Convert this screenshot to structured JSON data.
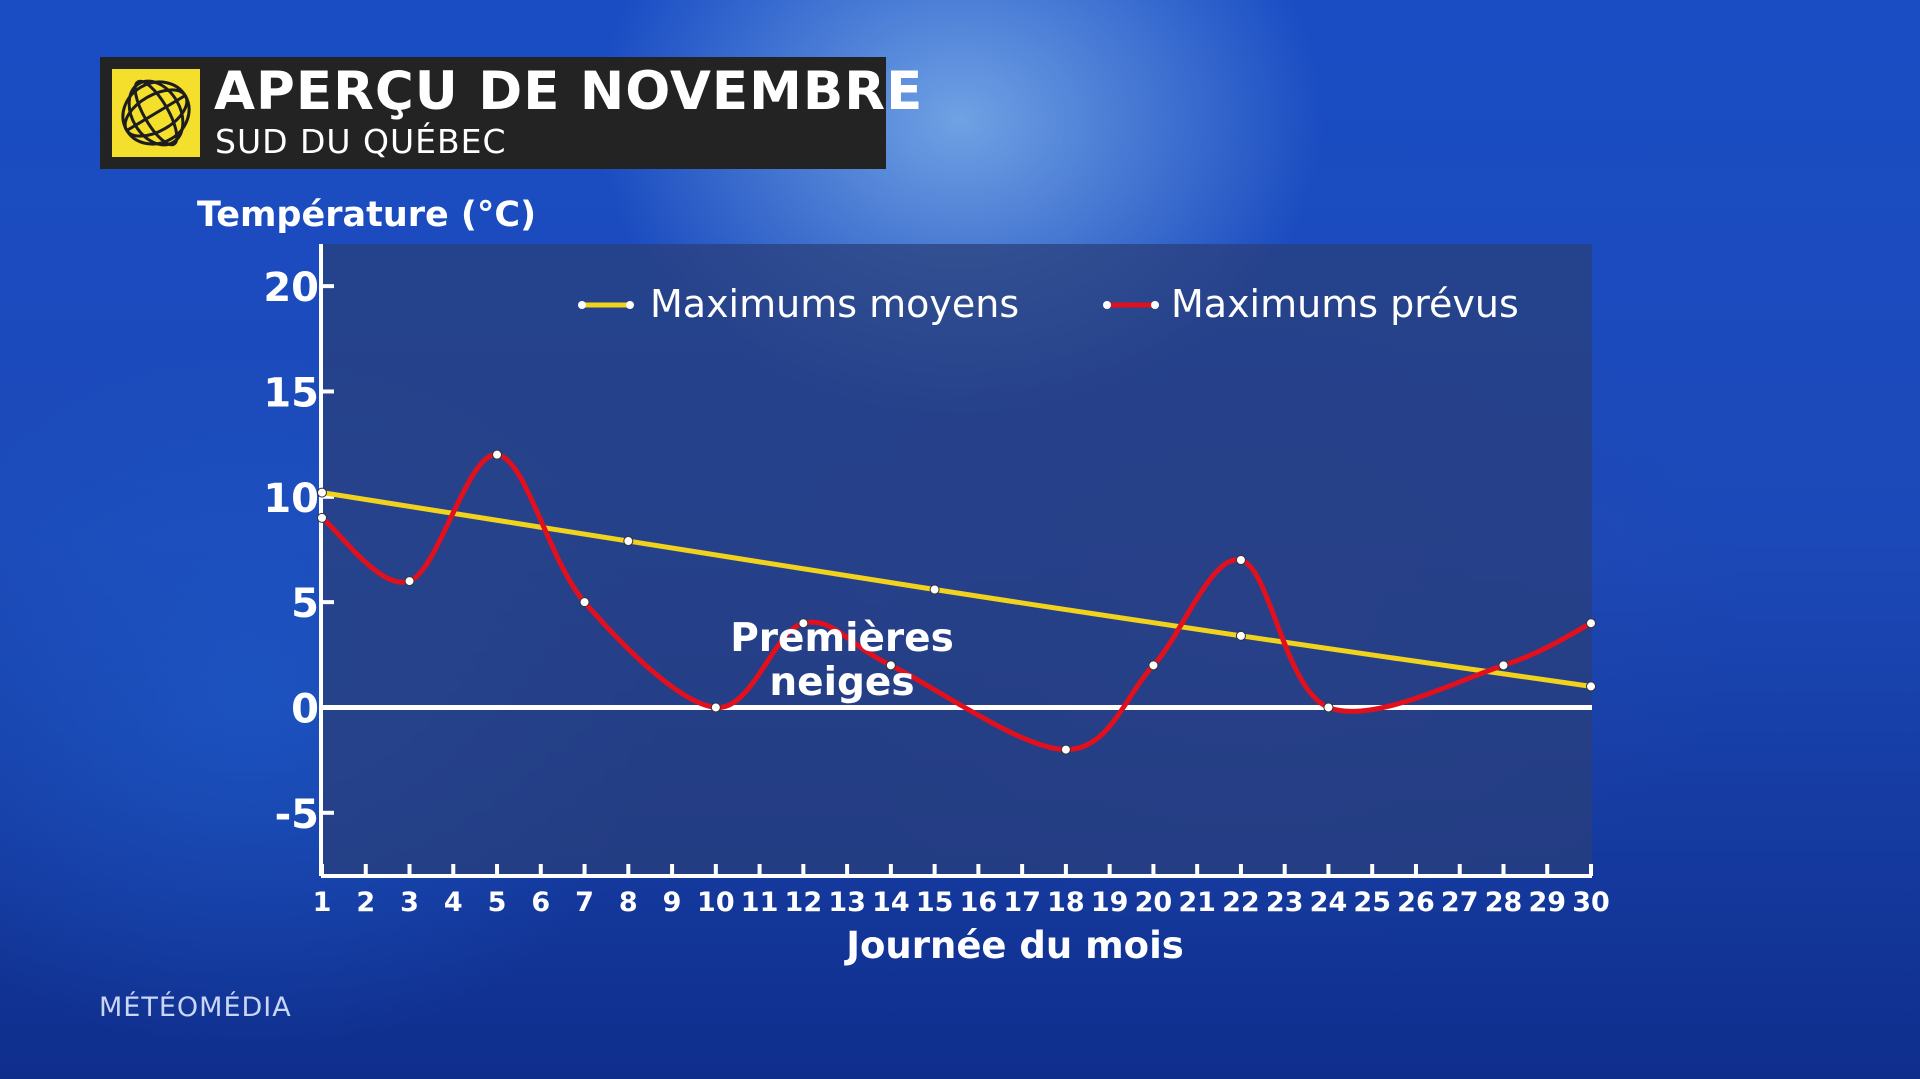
{
  "header": {
    "title": "APERÇU DE NOVEMBRE",
    "subtitle": "SUD DU QUÉBEC"
  },
  "branding": {
    "logo_icon": "meteomedia-globe-icon",
    "footer": "MÉTÉOMÉDIA"
  },
  "colors": {
    "average_line": "#f1d21c",
    "forecast_line": "#e2101c",
    "zero_line": "#ffffff",
    "plot_background": "#2a3f78"
  },
  "chart_data": {
    "type": "line",
    "ylabel": "Température (°C)",
    "xlabel": "Journée du mois",
    "ylim": [
      -8,
      22
    ],
    "y_ticks": [
      20,
      15,
      10,
      5,
      0,
      -5
    ],
    "x_ticks": [
      1,
      2,
      3,
      4,
      5,
      6,
      7,
      8,
      9,
      10,
      11,
      12,
      13,
      14,
      15,
      16,
      17,
      18,
      19,
      20,
      21,
      22,
      23,
      24,
      25,
      26,
      27,
      28,
      29,
      30
    ],
    "legend_position": "top",
    "series": [
      {
        "name": "Maximums moyens",
        "color_key": "average_line",
        "x": [
          1,
          8,
          15,
          22,
          30
        ],
        "y": [
          10.2,
          7.9,
          5.6,
          3.4,
          1
        ]
      },
      {
        "name": "Maximums prévus",
        "color_key": "forecast_line",
        "x": [
          1,
          3,
          5,
          7,
          10,
          12,
          14,
          18,
          20,
          22,
          24,
          28,
          30
        ],
        "y": [
          9,
          6,
          12,
          5,
          0,
          4,
          2,
          -2,
          2,
          7,
          0,
          2,
          4
        ]
      }
    ],
    "annotations": [
      {
        "text_line1": "Premières",
        "text_line2": "neiges",
        "x": 12,
        "y": 2
      }
    ]
  }
}
